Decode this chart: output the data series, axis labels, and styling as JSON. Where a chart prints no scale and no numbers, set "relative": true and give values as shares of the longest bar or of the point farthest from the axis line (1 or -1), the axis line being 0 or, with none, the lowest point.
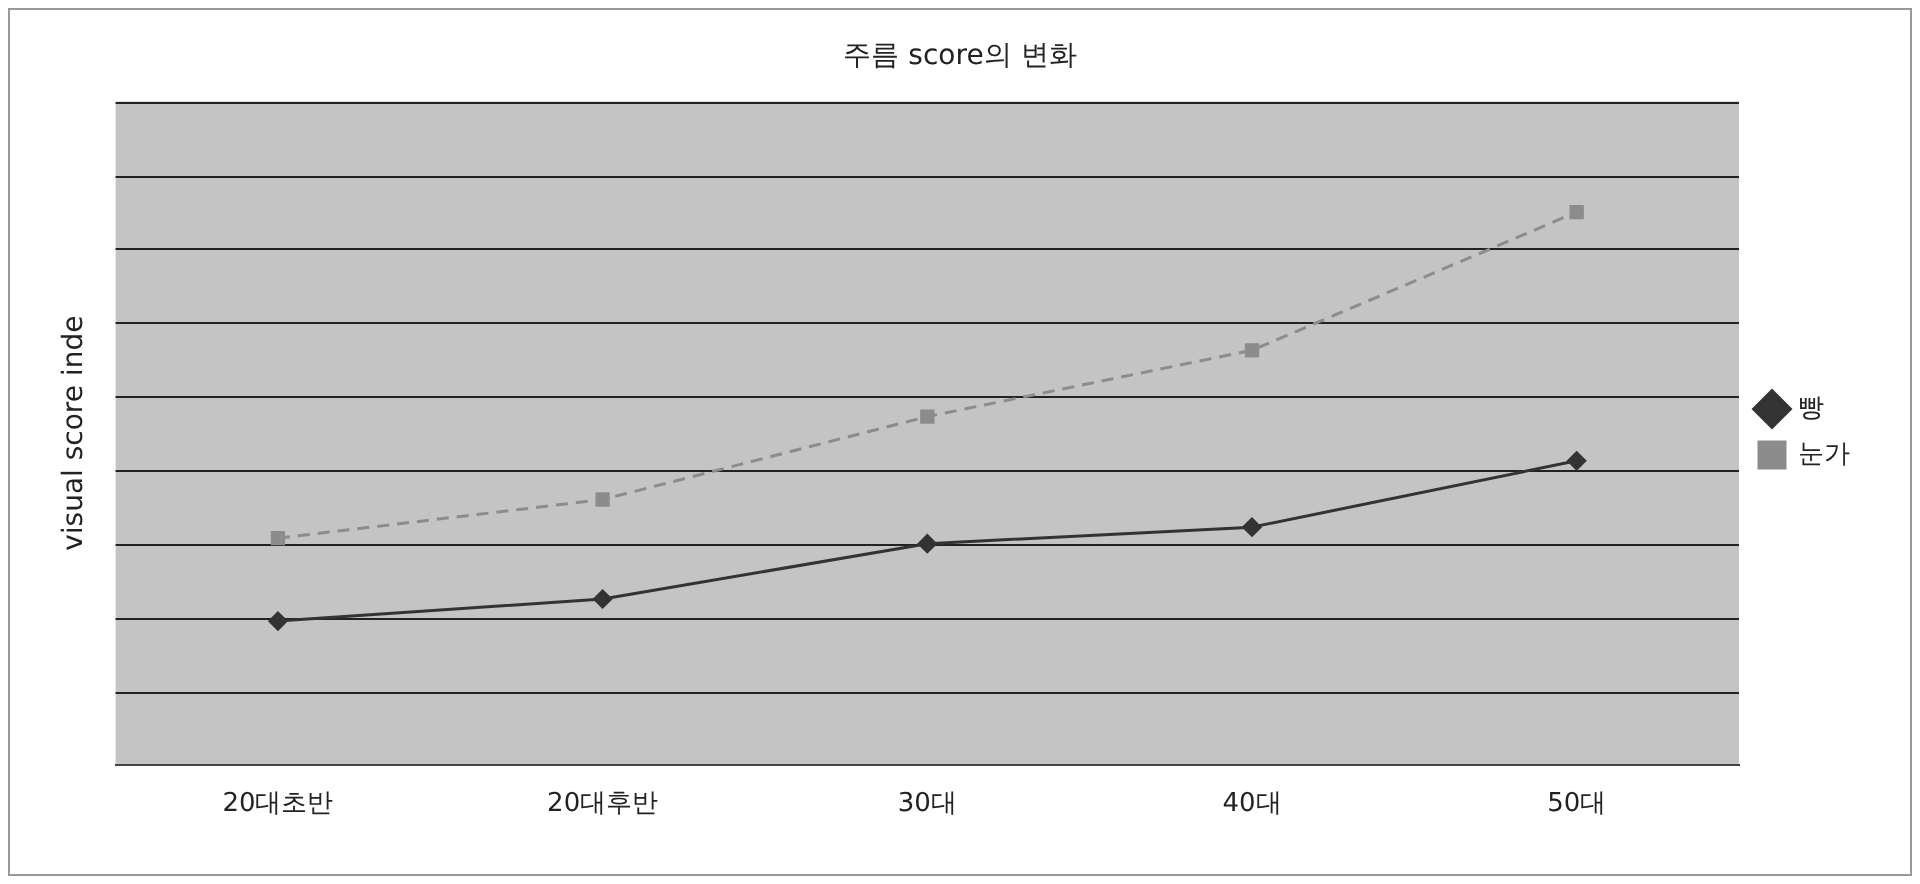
{
  "chart_data": {
    "type": "line",
    "title": "주름 score의 변화",
    "ylabel": "visual score inde",
    "categories": [
      "20대초반",
      "20대후반",
      "30대",
      "40대",
      "50대"
    ],
    "relative": true,
    "grid": "y",
    "legend": "right",
    "series": [
      {
        "name": "빵",
        "color": "#333333",
        "values": [
          0.26,
          0.3,
          0.4,
          0.43,
          0.55
        ],
        "marker": "diamond",
        "line_style": "solid"
      },
      {
        "name": "눈가",
        "color": "#8c8c8c",
        "values": [
          0.41,
          0.48,
          0.63,
          0.75,
          1
        ],
        "marker": "square",
        "line_style": "dashed"
      }
    ]
  }
}
